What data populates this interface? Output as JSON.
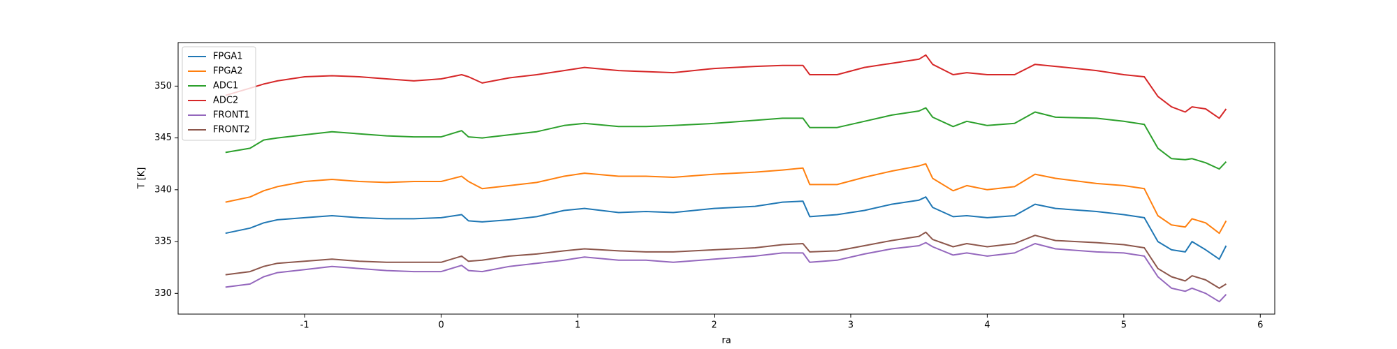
{
  "chart_data": {
    "type": "line",
    "xlabel": "ra",
    "ylabel": "T [K]",
    "x": [
      -1.58,
      -1.4,
      -1.3,
      -1.2,
      -1.0,
      -0.8,
      -0.6,
      -0.4,
      -0.2,
      0,
      0.15,
      0.2,
      0.3,
      0.5,
      0.7,
      0.9,
      1.05,
      1.3,
      1.5,
      1.7,
      2.0,
      2.3,
      2.5,
      2.65,
      2.7,
      2.9,
      3.1,
      3.3,
      3.5,
      3.55,
      3.6,
      3.75,
      3.85,
      4.0,
      4.2,
      4.35,
      4.5,
      4.8,
      5.0,
      5.15,
      5.25,
      5.35,
      5.45,
      5.5,
      5.6,
      5.7,
      5.75
    ],
    "series": [
      {
        "name": "FPGA1",
        "color": "#1f77b4",
        "values": [
          335.8,
          336.3,
          336.8,
          337.1,
          337.3,
          337.5,
          337.3,
          337.2,
          337.2,
          337.3,
          337.6,
          337.0,
          336.9,
          337.1,
          337.4,
          338.0,
          338.2,
          337.8,
          337.9,
          337.8,
          338.2,
          338.4,
          338.8,
          338.9,
          337.4,
          337.6,
          338.0,
          338.6,
          339.0,
          339.3,
          338.3,
          337.4,
          337.5,
          337.3,
          337.5,
          338.6,
          338.2,
          337.9,
          337.6,
          337.3,
          335.0,
          334.2,
          334.0,
          335.0,
          334.2,
          333.3,
          334.6
        ]
      },
      {
        "name": "FPGA2",
        "color": "#ff7f0e",
        "values": [
          338.8,
          339.3,
          339.9,
          340.3,
          340.8,
          341.0,
          340.8,
          340.7,
          340.8,
          340.8,
          341.3,
          340.8,
          340.1,
          340.4,
          340.7,
          341.3,
          341.6,
          341.3,
          341.3,
          341.2,
          341.5,
          341.7,
          341.9,
          342.1,
          340.5,
          340.5,
          341.2,
          341.8,
          342.3,
          342.5,
          341.1,
          339.9,
          340.4,
          340.0,
          340.3,
          341.5,
          341.1,
          340.6,
          340.4,
          340.1,
          337.5,
          336.6,
          336.4,
          337.2,
          336.8,
          335.8,
          337.0
        ]
      },
      {
        "name": "ADC1",
        "color": "#2ca02c",
        "values": [
          343.6,
          344.0,
          344.8,
          345.0,
          345.3,
          345.6,
          345.4,
          345.2,
          345.1,
          345.1,
          345.7,
          345.1,
          345.0,
          345.3,
          345.6,
          346.2,
          346.4,
          346.1,
          346.1,
          346.2,
          346.4,
          346.7,
          346.9,
          346.9,
          346.0,
          346.0,
          346.6,
          347.2,
          347.6,
          347.9,
          347.0,
          346.1,
          346.6,
          346.2,
          346.4,
          347.5,
          347.0,
          346.9,
          346.6,
          346.3,
          344.0,
          343.0,
          342.9,
          343.0,
          342.6,
          342.0,
          342.7
        ]
      },
      {
        "name": "ADC2",
        "color": "#d62728",
        "values": [
          349.1,
          349.8,
          350.2,
          350.5,
          350.9,
          351.0,
          350.9,
          350.7,
          350.5,
          350.7,
          351.1,
          350.9,
          350.3,
          350.8,
          351.1,
          351.5,
          351.8,
          351.5,
          351.4,
          351.3,
          351.7,
          351.9,
          352.0,
          352.0,
          351.1,
          351.1,
          351.8,
          352.2,
          352.6,
          353.0,
          352.1,
          351.1,
          351.3,
          351.1,
          351.1,
          352.1,
          351.9,
          351.5,
          351.1,
          350.9,
          349.0,
          348.0,
          347.5,
          348.0,
          347.8,
          346.9,
          347.8
        ]
      },
      {
        "name": "FRONT1",
        "color": "#9467bd",
        "values": [
          330.6,
          330.9,
          331.6,
          332.0,
          332.3,
          332.6,
          332.4,
          332.2,
          332.1,
          332.1,
          332.7,
          332.2,
          332.1,
          332.6,
          332.9,
          333.2,
          333.5,
          333.2,
          333.2,
          333.0,
          333.3,
          333.6,
          333.9,
          333.9,
          333.0,
          333.2,
          333.8,
          334.3,
          334.6,
          334.9,
          334.5,
          333.7,
          333.9,
          333.6,
          333.9,
          334.8,
          334.3,
          334.0,
          333.9,
          333.6,
          331.6,
          330.5,
          330.2,
          330.5,
          330.0,
          329.2,
          329.9
        ]
      },
      {
        "name": "FRONT2",
        "color": "#8c564b",
        "values": [
          331.8,
          332.1,
          332.6,
          332.9,
          333.1,
          333.3,
          333.1,
          333.0,
          333.0,
          333.0,
          333.6,
          333.1,
          333.2,
          333.6,
          333.8,
          334.1,
          334.3,
          334.1,
          334.0,
          334.0,
          334.2,
          334.4,
          334.7,
          334.8,
          334.0,
          334.1,
          334.6,
          335.1,
          335.5,
          335.9,
          335.2,
          334.5,
          334.8,
          334.5,
          334.8,
          335.6,
          335.1,
          334.9,
          334.7,
          334.4,
          332.4,
          331.6,
          331.2,
          331.7,
          331.3,
          330.5,
          330.9
        ]
      }
    ],
    "xlim": [
      -1.927,
      6.106
    ],
    "xticks": [
      -1,
      0,
      1,
      2,
      3,
      4,
      5,
      6
    ],
    "ylim": [
      328.0,
      354.2
    ],
    "yticks": [
      330,
      335,
      340,
      345,
      350
    ],
    "legend": "upper left"
  }
}
